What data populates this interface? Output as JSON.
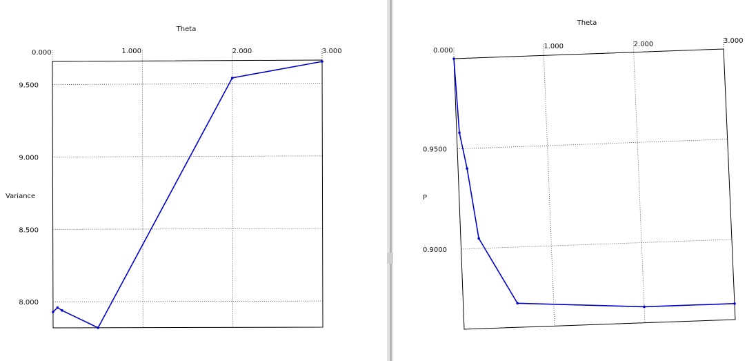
{
  "chart_data": [
    {
      "type": "line",
      "title": "Theta",
      "xlabel": "Theta",
      "ylabel": "Variance",
      "xlim": [
        0,
        3
      ],
      "ylim": [
        7.82,
        9.66
      ],
      "xticks": [
        "0.000",
        "1.000",
        "2.000",
        "3.000"
      ],
      "yticks": [
        {
          "value": 9.5,
          "label": "9.500"
        },
        {
          "value": 9.0,
          "label": "9.000"
        },
        {
          "value": 8.5,
          "label": "8.500"
        },
        {
          "value": 8.0,
          "label": "8.000"
        }
      ],
      "x_axis_position": "top",
      "grid": true,
      "series": [
        {
          "x": [
            0.0,
            0.05,
            0.1,
            0.5,
            2.0,
            3.0
          ],
          "y": [
            7.93,
            7.96,
            7.94,
            7.82,
            9.54,
            9.65
          ],
          "color": "#0000cc"
        }
      ]
    },
    {
      "type": "line",
      "title": "Theta",
      "xlabel": "Theta",
      "ylabel": "P",
      "xlim": [
        0,
        3
      ],
      "ylim": [
        0.86,
        0.995
      ],
      "xticks": [
        "0.000",
        "1.000",
        "2.000",
        "3.000"
      ],
      "yticks": [
        {
          "value": 0.95,
          "label": "0.9500"
        },
        {
          "value": 0.9,
          "label": "0.9000"
        }
      ],
      "x_axis_position": "top",
      "grid": true,
      "series": [
        {
          "x": [
            0.0,
            0.03,
            0.1,
            0.2,
            0.6,
            2.0,
            3.0
          ],
          "y": [
            0.995,
            0.958,
            0.94,
            0.905,
            0.872,
            0.868,
            0.868
          ],
          "color": "#0000cc"
        }
      ]
    }
  ]
}
